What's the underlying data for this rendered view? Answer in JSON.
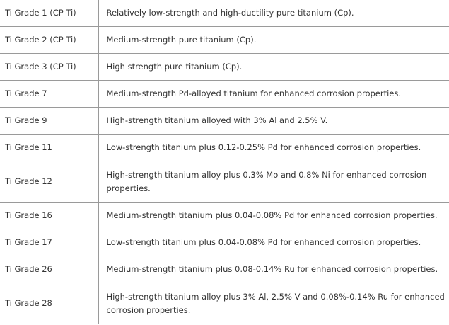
{
  "rows": [
    {
      "grade": "Ti Grade 1 (CP Ti)",
      "description": "Relatively low-strength and high-ductility pure titanium (Cp)."
    },
    {
      "grade": "Ti Grade 2 (CP Ti)",
      "description": "Medium-strength pure titanium (Cp)."
    },
    {
      "grade": "Ti Grade 3 (CP Ti)",
      "description": "High strength pure titanium (Cp)."
    },
    {
      "grade": "Ti Grade 7",
      "description": "Medium-strength Pd-alloyed titanium for enhanced corrosion properties."
    },
    {
      "grade": "Ti Grade 9",
      "description": "High-strength titanium alloyed with 3% Al and 2.5% V."
    },
    {
      "grade": "Ti Grade 11",
      "description": "Low-strength titanium plus 0.12-0.25% Pd for enhanced corrosion properties."
    },
    {
      "grade": "Ti Grade 12",
      "description": "High-strength titanium alloy plus 0.3% Mo and 0.8% Ni for enhanced corrosion properties."
    },
    {
      "grade": "Ti Grade 16",
      "description": "Medium-strength titanium plus 0.04-0.08% Pd for enhanced corrosion properties."
    },
    {
      "grade": "Ti Grade 17",
      "description": "Low-strength titanium plus 0.04-0.08% Pd for enhanced corrosion properties."
    },
    {
      "grade": "Ti Grade 26",
      "description": "Medium-strength titanium plus 0.08-0.14% Ru for enhanced corrosion properties."
    },
    {
      "grade": "Ti Grade 28",
      "description": "High-strength titanium alloy plus 3% Al, 2.5% V and 0.08%-0.14% Ru for enhanced corrosion properties."
    }
  ]
}
